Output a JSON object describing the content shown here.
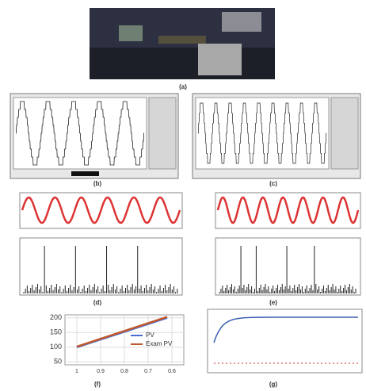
{
  "figure": {
    "captions": [
      "(a)",
      "(b)",
      "(c)",
      "(d)",
      "(e)",
      "(f)",
      "(g)"
    ]
  },
  "chart_data": {
    "type": "line",
    "x": [
      1,
      0.62
    ],
    "series": [
      {
        "name": "PV",
        "color": "#4a6fd0",
        "values": [
          100,
          200
        ]
      },
      {
        "name": "Exam PV",
        "color": "#c0572b",
        "values": [
          102,
          203
        ]
      }
    ],
    "xlim": [
      1.05,
      0.55
    ],
    "xticks": [
      1,
      0.9,
      0.8,
      0.7,
      0.6
    ],
    "ylim": [
      40,
      210
    ],
    "yticks": [
      50,
      100,
      150,
      200
    ],
    "grid": true
  }
}
